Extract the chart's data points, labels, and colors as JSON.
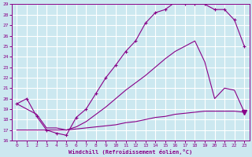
{
  "xlabel": "Windchill (Refroidissement éolien,°C)",
  "background_color": "#cce8f0",
  "grid_color": "#ffffff",
  "line_color": "#880088",
  "xlim": [
    -0.5,
    23.5
  ],
  "ylim": [
    16,
    29
  ],
  "yticks": [
    16,
    17,
    18,
    19,
    20,
    21,
    22,
    23,
    24,
    25,
    26,
    27,
    28,
    29
  ],
  "xticks": [
    0,
    1,
    2,
    3,
    4,
    5,
    6,
    7,
    8,
    9,
    10,
    11,
    12,
    13,
    14,
    15,
    16,
    17,
    18,
    19,
    20,
    21,
    22,
    23
  ],
  "hours": [
    0,
    1,
    2,
    3,
    4,
    5,
    6,
    7,
    8,
    9,
    10,
    11,
    12,
    13,
    14,
    15,
    16,
    17,
    18,
    19,
    20,
    21,
    22,
    23
  ],
  "temp": [
    19.5,
    20.0,
    18.3,
    17.0,
    16.7,
    16.5,
    18.2,
    19.0,
    20.5,
    22.0,
    23.2,
    24.5,
    25.5,
    27.2,
    28.2,
    28.5,
    29.2,
    29.0,
    29.0,
    29.0,
    28.5,
    28.5,
    27.5,
    25.0
  ],
  "line2": [
    19.5,
    19.0,
    18.5,
    17.2,
    17.2,
    17.0,
    17.3,
    17.8,
    18.5,
    19.2,
    20.0,
    20.8,
    21.5,
    22.2,
    23.0,
    23.8,
    24.5,
    25.0,
    25.5,
    23.5,
    20.0,
    21.0,
    20.8,
    18.7
  ],
  "line3": [
    17.0,
    17.0,
    17.0,
    17.0,
    17.0,
    17.0,
    17.1,
    17.2,
    17.3,
    17.4,
    17.5,
    17.7,
    17.8,
    18.0,
    18.2,
    18.3,
    18.5,
    18.6,
    18.7,
    18.8,
    18.8,
    18.8,
    18.8,
    18.7
  ],
  "triangle_x": 23,
  "triangle_y": 18.7
}
